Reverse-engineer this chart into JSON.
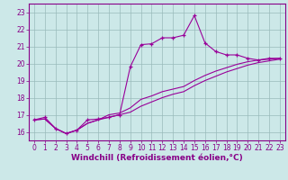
{
  "xlabel": "Windchill (Refroidissement éolien,°C)",
  "bg_color": "#cce8e8",
  "line_color": "#990099",
  "grid_color": "#99bbbb",
  "xlim": [
    -0.5,
    23.5
  ],
  "ylim": [
    15.5,
    23.5
  ],
  "yticks": [
    16,
    17,
    18,
    19,
    20,
    21,
    22,
    23
  ],
  "xticks": [
    0,
    1,
    2,
    3,
    4,
    5,
    6,
    7,
    8,
    9,
    10,
    11,
    12,
    13,
    14,
    15,
    16,
    17,
    18,
    19,
    20,
    21,
    22,
    23
  ],
  "series1_x": [
    0,
    1,
    2,
    3,
    4,
    5,
    6,
    7,
    8,
    9,
    10,
    11,
    12,
    13,
    14,
    15,
    16,
    17,
    18,
    19,
    20,
    21,
    22,
    23
  ],
  "series1_y": [
    16.7,
    16.85,
    16.2,
    15.9,
    16.1,
    16.7,
    16.75,
    16.85,
    17.0,
    19.8,
    21.1,
    21.15,
    21.5,
    21.5,
    21.65,
    22.8,
    21.2,
    20.7,
    20.5,
    20.5,
    20.3,
    20.2,
    20.3,
    20.3
  ],
  "series2_x": [
    0,
    1,
    2,
    3,
    4,
    5,
    6,
    7,
    8,
    9,
    10,
    11,
    12,
    13,
    14,
    15,
    16,
    17,
    18,
    19,
    20,
    21,
    22,
    23
  ],
  "series2_y": [
    16.7,
    16.75,
    16.2,
    15.9,
    16.1,
    16.5,
    16.7,
    17.0,
    17.1,
    17.4,
    17.9,
    18.1,
    18.35,
    18.5,
    18.65,
    19.0,
    19.3,
    19.55,
    19.75,
    19.95,
    20.1,
    20.2,
    20.25,
    20.3
  ],
  "series3_x": [
    0,
    1,
    2,
    3,
    4,
    5,
    6,
    7,
    8,
    9,
    10,
    11,
    12,
    13,
    14,
    15,
    16,
    17,
    18,
    19,
    20,
    21,
    22,
    23
  ],
  "series3_y": [
    16.7,
    16.75,
    16.2,
    15.9,
    16.1,
    16.5,
    16.7,
    16.85,
    17.0,
    17.15,
    17.5,
    17.75,
    18.0,
    18.2,
    18.35,
    18.7,
    19.0,
    19.25,
    19.5,
    19.7,
    19.9,
    20.05,
    20.15,
    20.25
  ],
  "xlabel_color": "#880088",
  "xlabel_fontsize": 6.5,
  "tick_fontsize": 5.5,
  "tick_color": "#880088",
  "spine_color": "#880088"
}
